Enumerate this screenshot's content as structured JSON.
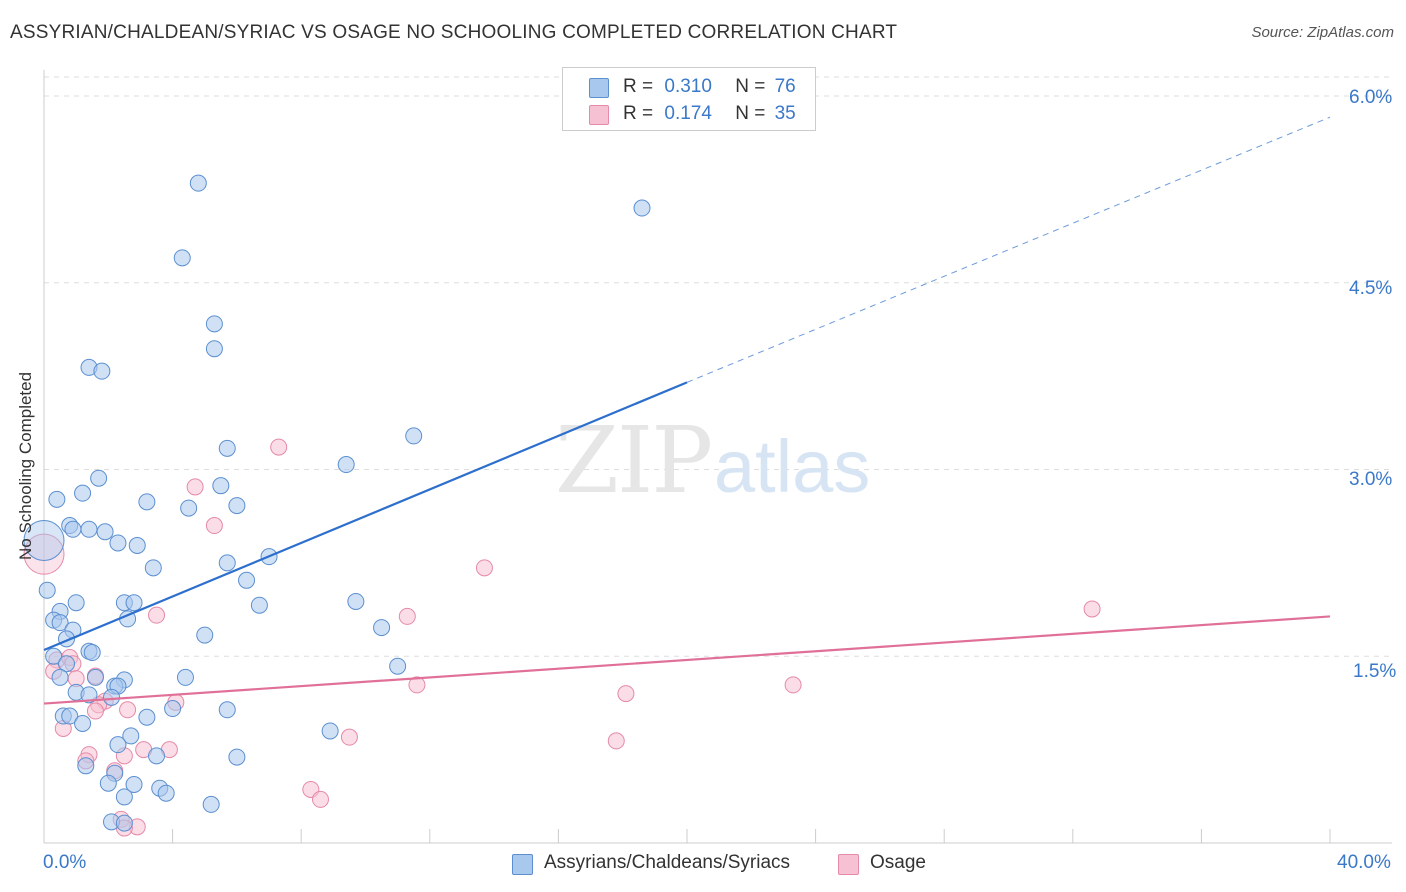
{
  "header": {
    "title": "ASSYRIAN/CHALDEAN/SYRIAC VS OSAGE NO SCHOOLING COMPLETED CORRELATION CHART",
    "source": "Source: ZipAtlas.com"
  },
  "legend": {
    "rows": [
      {
        "r_label": "R =",
        "r_value": "0.310",
        "n_label": "N =",
        "n_value": "76"
      },
      {
        "r_label": "R =",
        "r_value": "0.174",
        "n_label": "N =",
        "n_value": "35"
      }
    ]
  },
  "bottom_legend": [
    "Assyrians/Chaldeans/Syriacs",
    "Osage"
  ],
  "watermark": {
    "zip": "ZIP",
    "atlas": "atlas"
  },
  "colors": {
    "blue_fill": "#a9c8ee",
    "blue_stroke": "#5b8fd0",
    "blue_line": "#2d6fcc",
    "pink_fill": "#f6c1d2",
    "pink_stroke": "#e58aa8",
    "pink_line": "#e07098",
    "tick_text": "#3a78c9",
    "grid": "#dddddd"
  },
  "chart_data": {
    "type": "scatter",
    "title": "ASSYRIAN/CHALDEAN/SYRIAC VS OSAGE NO SCHOOLING COMPLETED CORRELATION CHART",
    "xlabel": "",
    "ylabel": "No Schooling Completed",
    "xlim": [
      0,
      40
    ],
    "ylim": [
      0,
      6.2
    ],
    "x_ticks": [
      "0.0%",
      "40.0%"
    ],
    "y_ticks": [
      {
        "value": 1.5,
        "label": "1.5%"
      },
      {
        "value": 3.0,
        "label": "3.0%"
      },
      {
        "value": 4.5,
        "label": "4.5%"
      },
      {
        "value": 6.0,
        "label": "6.0%"
      }
    ],
    "grid": true,
    "legend_position": "top-center",
    "series": [
      {
        "name": "Assyrians/Chaldeans/Syriacs",
        "color": "#a9c8ee",
        "r": 0.31,
        "n": 76,
        "trend": {
          "x0": 0,
          "y0": 1.55,
          "x1": 20,
          "y1": 3.7,
          "dash_to_x": 40,
          "dash_to_y": 5.83
        },
        "points": [
          [
            4.8,
            5.3
          ],
          [
            18.6,
            5.1
          ],
          [
            4.3,
            4.7
          ],
          [
            5.3,
            4.17
          ],
          [
            5.3,
            3.97
          ],
          [
            1.4,
            3.82
          ],
          [
            1.8,
            3.79
          ],
          [
            11.5,
            3.27
          ],
          [
            5.7,
            3.17
          ],
          [
            9.4,
            3.04
          ],
          [
            1.7,
            2.93
          ],
          [
            5.5,
            2.87
          ],
          [
            1.2,
            2.81
          ],
          [
            0.4,
            2.76
          ],
          [
            3.2,
            2.74
          ],
          [
            4.5,
            2.69
          ],
          [
            6.0,
            2.71
          ],
          [
            0.8,
            2.55
          ],
          [
            0.9,
            2.52
          ],
          [
            1.4,
            2.52
          ],
          [
            1.9,
            2.5
          ],
          [
            2.3,
            2.41
          ],
          [
            2.9,
            2.39
          ],
          [
            7.0,
            2.3
          ],
          [
            5.7,
            2.25
          ],
          [
            3.4,
            2.21
          ],
          [
            6.3,
            2.11
          ],
          [
            0.1,
            2.03
          ],
          [
            9.7,
            1.94
          ],
          [
            1.0,
            1.93
          ],
          [
            2.5,
            1.93
          ],
          [
            2.8,
            1.93
          ],
          [
            6.7,
            1.91
          ],
          [
            0.5,
            1.86
          ],
          [
            0.3,
            1.79
          ],
          [
            0.5,
            1.77
          ],
          [
            2.6,
            1.8
          ],
          [
            10.5,
            1.73
          ],
          [
            0.9,
            1.71
          ],
          [
            0.7,
            1.64
          ],
          [
            5.0,
            1.67
          ],
          [
            1.4,
            1.54
          ],
          [
            1.5,
            1.53
          ],
          [
            0.3,
            1.5
          ],
          [
            0.7,
            1.44
          ],
          [
            11.0,
            1.42
          ],
          [
            0.5,
            1.33
          ],
          [
            1.6,
            1.33
          ],
          [
            2.5,
            1.31
          ],
          [
            4.4,
            1.33
          ],
          [
            2.2,
            1.26
          ],
          [
            2.3,
            1.26
          ],
          [
            1.0,
            1.21
          ],
          [
            1.4,
            1.19
          ],
          [
            2.1,
            1.17
          ],
          [
            4.0,
            1.08
          ],
          [
            5.7,
            1.07
          ],
          [
            0.6,
            1.02
          ],
          [
            0.8,
            1.02
          ],
          [
            3.2,
            1.01
          ],
          [
            1.2,
            0.96
          ],
          [
            8.9,
            0.9
          ],
          [
            2.7,
            0.86
          ],
          [
            2.3,
            0.79
          ],
          [
            6.0,
            0.69
          ],
          [
            3.5,
            0.7
          ],
          [
            1.3,
            0.62
          ],
          [
            2.2,
            0.56
          ],
          [
            2.0,
            0.48
          ],
          [
            2.8,
            0.47
          ],
          [
            3.6,
            0.44
          ],
          [
            3.8,
            0.4
          ],
          [
            2.5,
            0.37
          ],
          [
            5.2,
            0.31
          ],
          [
            2.1,
            0.17
          ],
          [
            2.5,
            0.16
          ]
        ],
        "large_point": [
          0,
          2.43
        ]
      },
      {
        "name": "Osage",
        "color": "#f6c1d2",
        "r": 0.174,
        "n": 35,
        "trend": {
          "x0": 0,
          "y0": 1.12,
          "x1": 40,
          "y1": 1.82
        },
        "points": [
          [
            7.3,
            3.18
          ],
          [
            4.7,
            2.86
          ],
          [
            5.3,
            2.55
          ],
          [
            13.7,
            2.21
          ],
          [
            32.6,
            1.88
          ],
          [
            3.5,
            1.83
          ],
          [
            11.3,
            1.82
          ],
          [
            0.4,
            1.47
          ],
          [
            0.8,
            1.49
          ],
          [
            0.9,
            1.44
          ],
          [
            0.3,
            1.38
          ],
          [
            1.6,
            1.34
          ],
          [
            1.0,
            1.32
          ],
          [
            11.6,
            1.27
          ],
          [
            23.3,
            1.27
          ],
          [
            18.1,
            1.2
          ],
          [
            4.1,
            1.13
          ],
          [
            1.9,
            1.14
          ],
          [
            1.7,
            1.11
          ],
          [
            2.6,
            1.07
          ],
          [
            1.6,
            1.06
          ],
          [
            0.6,
            0.92
          ],
          [
            9.5,
            0.85
          ],
          [
            17.8,
            0.82
          ],
          [
            3.1,
            0.75
          ],
          [
            3.9,
            0.75
          ],
          [
            1.4,
            0.71
          ],
          [
            2.5,
            0.7
          ],
          [
            1.3,
            0.66
          ],
          [
            2.2,
            0.58
          ],
          [
            8.3,
            0.43
          ],
          [
            8.6,
            0.35
          ],
          [
            2.4,
            0.19
          ],
          [
            2.9,
            0.13
          ],
          [
            2.5,
            0.12
          ]
        ],
        "large_point": [
          0,
          2.32
        ]
      }
    ]
  }
}
